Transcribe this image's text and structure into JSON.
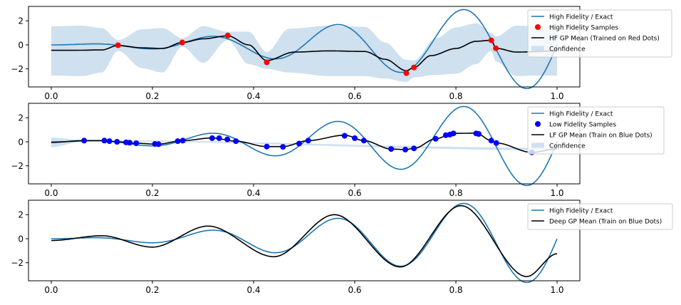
{
  "chart_data": [
    {
      "type": "line",
      "title": "",
      "xlabel": "",
      "ylabel": "",
      "xlim": [
        -0.045,
        1.045
      ],
      "ylim": [
        -3.5,
        3.2
      ],
      "xticks": [
        "0.0",
        "0.2",
        "0.4",
        "0.6",
        "0.8",
        "1.0"
      ],
      "yticks": [
        "−2",
        "0",
        "2"
      ],
      "grid": false,
      "legend_placement": "upper-right (outside axes)",
      "legend": [
        {
          "label": "High Fidelity / Exact",
          "kind": "line",
          "color": "#1f77b4"
        },
        {
          "label": "High Fidelity Samples",
          "kind": "marker",
          "color": "#ff0000"
        },
        {
          "label": "HF GP Mean (Trained on Red Dots)",
          "kind": "line",
          "color": "#000000"
        },
        {
          "label": "Confidence",
          "kind": "patch",
          "color": "#cfe0ef"
        }
      ],
      "exact_function": "sin(8*pi*x) * x^1.5 * 4 (sampled from 0 to 1)",
      "samples": {
        "name": "High Fidelity Samples",
        "x": [
          0.132,
          0.259,
          0.349,
          0.426,
          0.702,
          0.717,
          0.87,
          0.879
        ],
        "y": [
          -0.03,
          0.2,
          0.78,
          -1.45,
          -2.35,
          -1.88,
          0.38,
          -0.28
        ]
      },
      "mean": {
        "name": "HF GP Mean (Trained on Red Dots)",
        "x": [
          0.0,
          0.05,
          0.1,
          0.132,
          0.18,
          0.22,
          0.259,
          0.3,
          0.349,
          0.39,
          0.426,
          0.48,
          0.55,
          0.62,
          0.66,
          0.702,
          0.717,
          0.75,
          0.8,
          0.84,
          0.87,
          0.879,
          0.92,
          1.0
        ],
        "y": [
          -0.45,
          -0.45,
          -0.42,
          -0.05,
          -0.25,
          -0.3,
          0.2,
          0.5,
          0.75,
          0.0,
          -1.3,
          -0.6,
          -0.5,
          -0.55,
          -1.2,
          -2.15,
          -1.88,
          -0.9,
          -0.3,
          0.3,
          0.38,
          -0.28,
          -0.6,
          -0.5
        ]
      },
      "confidence": {
        "name": "Confidence",
        "x": [
          0.0,
          0.06,
          0.1,
          0.132,
          0.18,
          0.22,
          0.259,
          0.3,
          0.349,
          0.39,
          0.426,
          0.47,
          0.55,
          0.62,
          0.66,
          0.702,
          0.717,
          0.76,
          0.8,
          0.84,
          0.87,
          0.879,
          0.92,
          0.96,
          1.0
        ],
        "upper": [
          1.55,
          1.6,
          1.4,
          0.4,
          1.3,
          1.4,
          0.55,
          1.55,
          1.1,
          1.1,
          -0.6,
          1.35,
          1.6,
          1.5,
          0.2,
          -1.25,
          -1.3,
          0.55,
          1.45,
          1.8,
          1.0,
          0.7,
          1.6,
          1.55,
          1.55
        ],
        "lower": [
          -2.55,
          -2.6,
          -2.3,
          -0.5,
          -1.95,
          -2.3,
          -0.15,
          -1.5,
          0.4,
          -1.6,
          -2.0,
          -2.3,
          -2.6,
          -2.6,
          -2.8,
          -3.1,
          -2.7,
          -2.5,
          -2.4,
          -1.6,
          -0.5,
          -1.4,
          -2.6,
          -2.55,
          -2.55
        ]
      }
    },
    {
      "type": "line",
      "title": "",
      "xlabel": "",
      "ylabel": "",
      "xlim": [
        -0.045,
        1.045
      ],
      "ylim": [
        -3.5,
        3.2
      ],
      "xticks": [
        "0.0",
        "0.2",
        "0.4",
        "0.6",
        "0.8",
        "1.0"
      ],
      "yticks": [
        "−2",
        "0",
        "2"
      ],
      "grid": false,
      "legend_placement": "upper-right (outside axes)",
      "legend": [
        {
          "label": "High Fidelity / Exact",
          "kind": "line",
          "color": "#1f77b4"
        },
        {
          "label": "Low Fidelity Samples",
          "kind": "marker",
          "color": "#0000ff"
        },
        {
          "label": "LF GP Mean (Train on Blue Dots)",
          "kind": "line",
          "color": "#000000"
        },
        {
          "label": "Confidence",
          "kind": "patch",
          "color": "#cfe0ef"
        }
      ],
      "exact_function": "sin(8*pi*x) * x^1.5 * 4 (sampled from 0 to 1)",
      "samples": {
        "name": "Low Fidelity Samples",
        "x": [
          0.065,
          0.105,
          0.115,
          0.13,
          0.148,
          0.155,
          0.168,
          0.205,
          0.212,
          0.25,
          0.26,
          0.318,
          0.332,
          0.348,
          0.365,
          0.426,
          0.458,
          0.49,
          0.508,
          0.58,
          0.6,
          0.618,
          0.672,
          0.7,
          0.717,
          0.76,
          0.78,
          0.788,
          0.795,
          0.84,
          0.845,
          0.87,
          0.88,
          0.95
        ],
        "y": [
          0.1,
          0.1,
          0.05,
          0.0,
          -0.05,
          -0.08,
          -0.12,
          -0.18,
          -0.2,
          0.05,
          0.1,
          0.3,
          0.3,
          0.2,
          0.05,
          -0.4,
          -0.42,
          -0.15,
          0.1,
          0.5,
          0.3,
          0.1,
          -0.6,
          -0.65,
          -0.55,
          0.25,
          0.55,
          0.6,
          0.7,
          0.7,
          0.65,
          0.1,
          -0.1,
          -0.88
        ]
      },
      "mean": {
        "name": "LF GP Mean (Train on Blue Dots)",
        "x": [
          0.0,
          0.065,
          0.105,
          0.13,
          0.168,
          0.21,
          0.26,
          0.318,
          0.365,
          0.426,
          0.458,
          0.508,
          0.58,
          0.618,
          0.672,
          0.7,
          0.717,
          0.76,
          0.795,
          0.84,
          0.87,
          0.88,
          0.95,
          1.0
        ],
        "y": [
          -0.05,
          0.1,
          0.1,
          0.0,
          -0.12,
          -0.2,
          0.1,
          0.32,
          0.05,
          -0.4,
          -0.4,
          0.1,
          0.55,
          0.1,
          -0.6,
          -0.65,
          -0.55,
          0.25,
          0.7,
          0.72,
          0.1,
          -0.1,
          -0.88,
          -0.6
        ]
      },
      "confidence": {
        "name": "Confidence",
        "x": [
          0.0,
          0.065,
          1.0
        ],
        "upper": [
          0.35,
          0.15,
          -0.5
        ],
        "lower": [
          -0.45,
          0.05,
          -0.7
        ]
      }
    },
    {
      "type": "line",
      "title": "",
      "xlabel": "",
      "ylabel": "",
      "xlim": [
        -0.045,
        1.045
      ],
      "ylim": [
        -3.5,
        3.2
      ],
      "xticks": [
        "0.0",
        "0.2",
        "0.4",
        "0.6",
        "0.8",
        "1.0"
      ],
      "yticks": [
        "−2",
        "0",
        "2"
      ],
      "grid": false,
      "legend_placement": "upper-right (outside axes)",
      "legend": [
        {
          "label": "High Fidelity / Exact",
          "kind": "line",
          "color": "#1f77b4"
        },
        {
          "label": "Deep GP Mean (Train on Blue Dots)",
          "kind": "line",
          "color": "#000000"
        }
      ],
      "exact_function": "sin(8*pi*x) * x^1.5 * 4 (sampled from 0 to 1)",
      "mean": {
        "name": "Deep GP Mean (Train on Blue Dots)",
        "x": [
          0.0,
          0.1,
          0.2,
          0.31,
          0.44,
          0.56,
          0.69,
          0.81,
          0.94,
          1.0
        ],
        "y": [
          -0.15,
          0.25,
          -0.7,
          1.05,
          -1.5,
          2.0,
          -2.35,
          2.75,
          -3.15,
          -1.25
        ]
      }
    }
  ]
}
